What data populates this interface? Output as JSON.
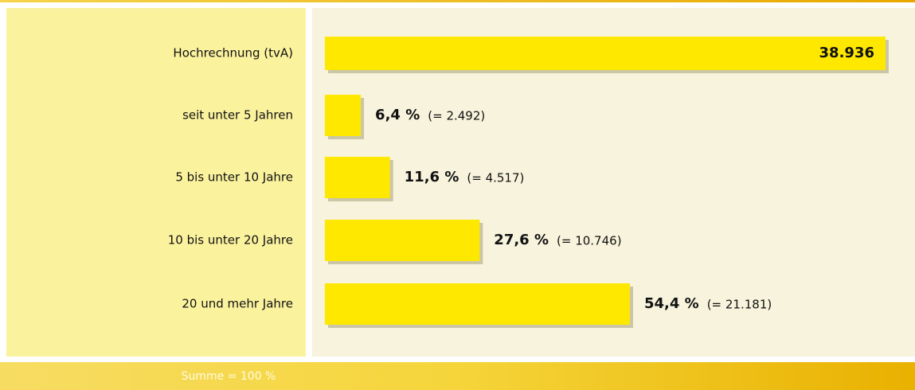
{
  "chart_data": {
    "type": "bar",
    "categories": [
      "Hochrechnung (tvA)",
      "seit unter 5 Jahren",
      "5 bis unter 10 Jahre",
      "10 bis unter 20 Jahre",
      "20 und mehr Jahre"
    ],
    "values": [
      38936,
      2492,
      4517,
      10746,
      21181
    ],
    "value_labels": [
      "38.936",
      "(= 2.492)",
      "(= 4.517)",
      "(= 10.746)",
      "(= 21.181)"
    ],
    "percents": [
      null,
      6.4,
      11.6,
      27.6,
      54.4
    ],
    "percent_labels": [
      null,
      "6,4 %",
      "11,6 %",
      "27,6 %",
      "54,4 %"
    ],
    "xlim": [
      0,
      38936
    ],
    "color": "#ffe800",
    "annotation": "Summe = 100 %"
  }
}
